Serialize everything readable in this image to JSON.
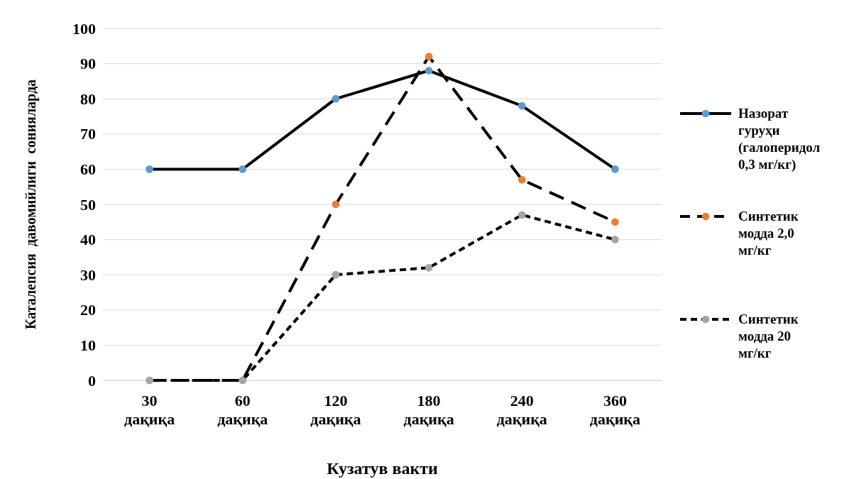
{
  "chart_data": {
    "type": "line",
    "xlabel": "Кузатув вакти",
    "ylabel": "Каталепсия  давомийлиги  сонияларда",
    "categories": [
      "30 дақиқа",
      "60 дақиқа",
      "120 дақиқа",
      "180 дақиқа",
      "240 дақиқа",
      "360 дақиқа"
    ],
    "series": [
      {
        "name": "Назорат гуруҳи (галоперидол 0,3 мг/кг)",
        "color": "#5b9bd5",
        "line_style": "solid",
        "values": [
          60,
          60,
          80,
          88,
          78,
          60
        ]
      },
      {
        "name": "Синтетик модда 2,0 мг/кг",
        "color": "#ed7d31",
        "line_style": "dashed",
        "values": [
          0,
          0,
          50,
          92,
          57,
          45
        ]
      },
      {
        "name": "Синтетик модда 20 мг/кг",
        "color": "#a5a5a5",
        "line_style": "dotted",
        "values": [
          0,
          0,
          30,
          32,
          47,
          40
        ]
      }
    ],
    "ylim": [
      0,
      100
    ],
    "yticks": [
      0,
      10,
      20,
      30,
      40,
      50,
      60,
      70,
      80,
      90,
      100
    ],
    "grid": "y",
    "legend": "right",
    "marker": "circle"
  }
}
